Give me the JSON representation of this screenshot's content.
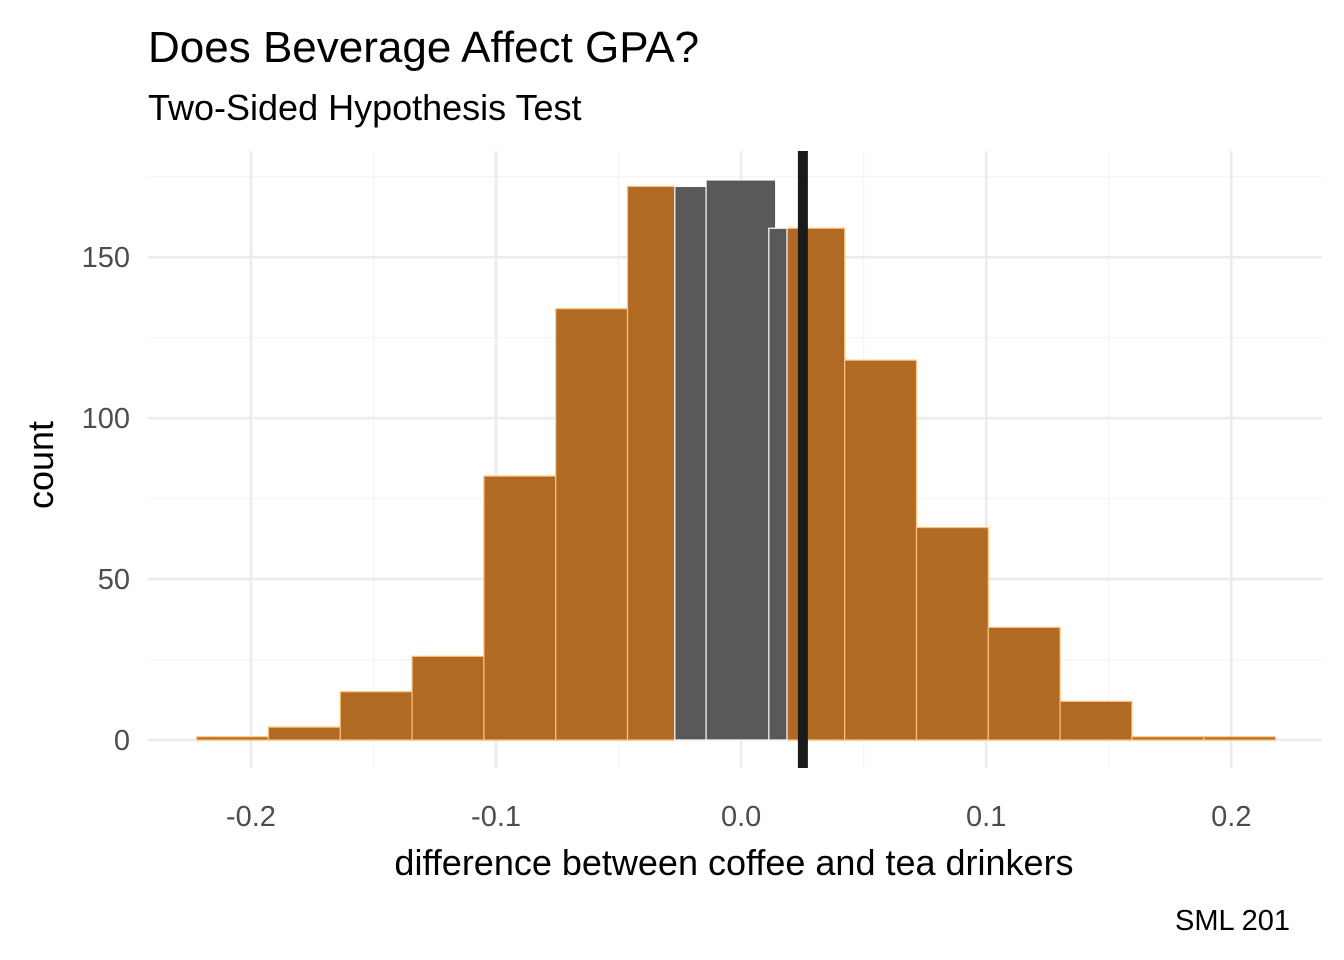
{
  "chart_data": {
    "type": "bar",
    "title": "Does Beverage Affect GPA?",
    "subtitle": "Two-Sided Hypothesis Test",
    "xlabel": "difference between coffee and tea drinkers",
    "ylabel": "count",
    "caption": "SML 201",
    "xlim": [
      -0.242,
      0.237
    ],
    "ylim": [
      -8.7,
      183
    ],
    "x_ticks": [
      -0.2,
      -0.1,
      0.0,
      0.1,
      0.2
    ],
    "x_tick_labels": [
      "-0.2",
      "-0.1",
      "0.0",
      "0.1",
      "0.2"
    ],
    "y_ticks": [
      0,
      50,
      100,
      150
    ],
    "y_tick_labels": [
      "0",
      "50",
      "100",
      "150"
    ],
    "grid": true,
    "bin_width": 0.0293,
    "bins": [
      {
        "center": -0.2075,
        "count": 1,
        "extreme": true
      },
      {
        "center": -0.1782,
        "count": 4,
        "extreme": true
      },
      {
        "center": -0.1489,
        "count": 15,
        "extreme": true
      },
      {
        "center": -0.1196,
        "count": 26,
        "extreme": true
      },
      {
        "center": -0.0903,
        "count": 82,
        "extreme": true
      },
      {
        "center": -0.061,
        "count": 134,
        "extreme": true
      },
      {
        "center": -0.0317,
        "count": 172,
        "extreme": true
      },
      {
        "center": -0.0197,
        "width": 0.0147,
        "count": 172,
        "extreme": false
      },
      {
        "center": -0.0001,
        "width": 0.0284,
        "count": 174,
        "extreme": false
      },
      {
        "center": 0.015,
        "width": 0.0074,
        "count": 159,
        "extreme": false
      },
      {
        "center": 0.0276,
        "count": 159,
        "extreme": true
      },
      {
        "center": 0.0569,
        "count": 118,
        "extreme": true
      },
      {
        "center": 0.0862,
        "count": 66,
        "extreme": true
      },
      {
        "center": 0.1155,
        "count": 35,
        "extreme": true
      },
      {
        "center": 0.1448,
        "count": 12,
        "extreme": true
      },
      {
        "center": 0.1741,
        "count": 1,
        "extreme": true
      },
      {
        "center": 0.2034,
        "count": 1,
        "extreme": true
      }
    ],
    "observed_difference": 0.0252,
    "colors": {
      "extreme_fill": "#B06A24",
      "extreme_outline": "#FFC27A",
      "middle_fill": "#595959",
      "middle_outline": "#FFFFFF",
      "observed_line": "#1a1a1a",
      "grid_major": "#EBEBEB",
      "grid_minor": "#F5F5F5"
    }
  }
}
